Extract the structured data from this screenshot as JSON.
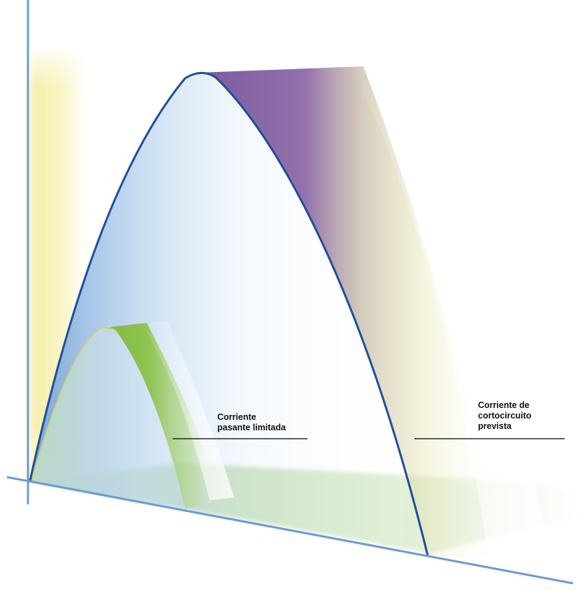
{
  "diagram": {
    "labels": {
      "limited_current": {
        "line1": "Corriente",
        "line2": "pasante limitada"
      },
      "prospective_current": {
        "line1": "Corriente de",
        "line2": "cortocircuito",
        "line3": "prevista"
      }
    },
    "colors": {
      "axis": "#6a9ad6",
      "prospective_curve": "#1f4e9a",
      "prospective_band": "#7a5aa0",
      "limited_band": "#7fba3c",
      "y_band": "#f4eea0",
      "floor_band": "#a9d08e"
    }
  }
}
